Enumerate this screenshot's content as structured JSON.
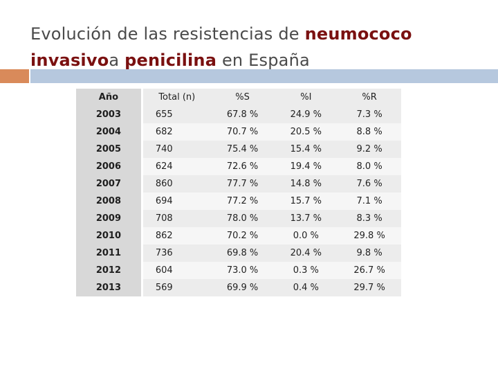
{
  "title": {
    "part1": "Evolución de las resistencias de ",
    "highlight1": "neumococo",
    "line_break_text": " ",
    "highlight2": "invasivo",
    "part2": "a ",
    "highlight3": "penicilina",
    "part3": " en España"
  },
  "colors": {
    "accent_orange": "#d98a5a",
    "accent_blue": "#b6c8de",
    "highlight": "#7a1010"
  },
  "table": {
    "headers": [
      "Año",
      "Total (n)",
      "%S",
      "%I",
      "%R"
    ],
    "rows": [
      [
        "2003",
        "655",
        "67.8 %",
        "24.9 %",
        "7.3 %"
      ],
      [
        "2004",
        "682",
        "70.7 %",
        "20.5 %",
        "8.8 %"
      ],
      [
        "2005",
        "740",
        "75.4 %",
        "15.4 %",
        "9.2 %"
      ],
      [
        "2006",
        "624",
        "72.6 %",
        "19.4 %",
        "8.0 %"
      ],
      [
        "2007",
        "860",
        "77.7 %",
        "14.8 %",
        "7.6 %"
      ],
      [
        "2008",
        "694",
        "77.2 %",
        "15.7 %",
        "7.1 %"
      ],
      [
        "2009",
        "708",
        "78.0 %",
        "13.7 %",
        "8.3 %"
      ],
      [
        "2010",
        "862",
        "70.2 %",
        "0.0 %",
        "29.8 %"
      ],
      [
        "2011",
        "736",
        "69.8 %",
        "20.4 %",
        "9.8 %"
      ],
      [
        "2012",
        "604",
        "73.0 %",
        "0.3 %",
        "26.7 %"
      ],
      [
        "2013",
        "569",
        "69.9 %",
        "0.4 %",
        "29.7 %"
      ]
    ]
  }
}
